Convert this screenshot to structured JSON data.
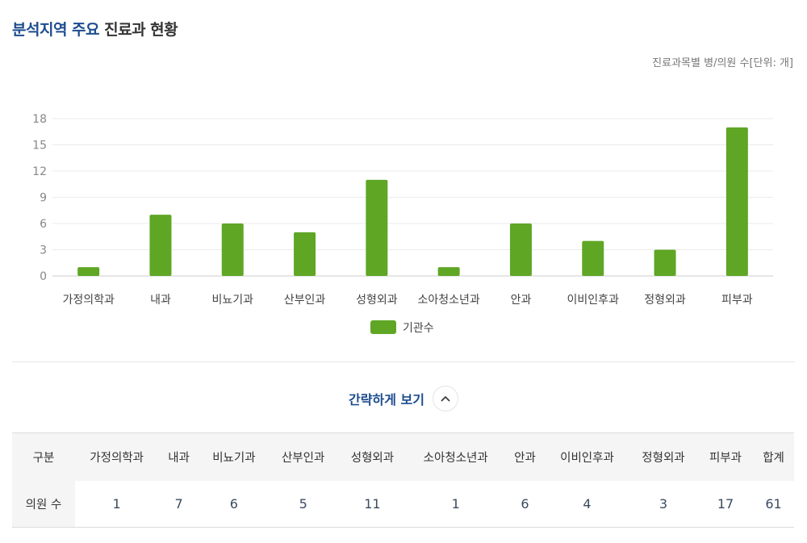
{
  "header": {
    "title_highlight": "분석지역 주요",
    "title_rest": "진료과 현황",
    "unit_note": "진료과목별 병/의원 수[단위: 개]"
  },
  "chart_data": {
    "type": "bar",
    "categories": [
      "가정의학과",
      "내과",
      "비뇨기과",
      "산부인과",
      "성형외과",
      "소아청소년과",
      "안과",
      "이비인후과",
      "정형외과",
      "피부과"
    ],
    "series": [
      {
        "name": "기관수",
        "values": [
          1,
          7,
          6,
          5,
          11,
          1,
          6,
          4,
          3,
          17
        ],
        "color": "#5fa625"
      }
    ],
    "yticks": [
      0,
      3,
      6,
      9,
      12,
      15,
      18
    ],
    "ylim": [
      0,
      18
    ],
    "grid": true,
    "legend": "bottom-center"
  },
  "toggle": {
    "label": "간략하게 보기",
    "icon": "chevron-up-icon"
  },
  "table": {
    "headers": [
      "구분",
      "가정의학과",
      "내과",
      "비뇨기과",
      "산부인과",
      "성형외과",
      "소아청소년과",
      "안과",
      "이비인후과",
      "정형외과",
      "피부과",
      "합계"
    ],
    "row_label": "의원 수",
    "values": [
      "1",
      "7",
      "6",
      "5",
      "11",
      "1",
      "6",
      "4",
      "3",
      "17",
      "61"
    ]
  },
  "colors": {
    "accent": "#1d4c8f",
    "bar": "#5fa625"
  }
}
